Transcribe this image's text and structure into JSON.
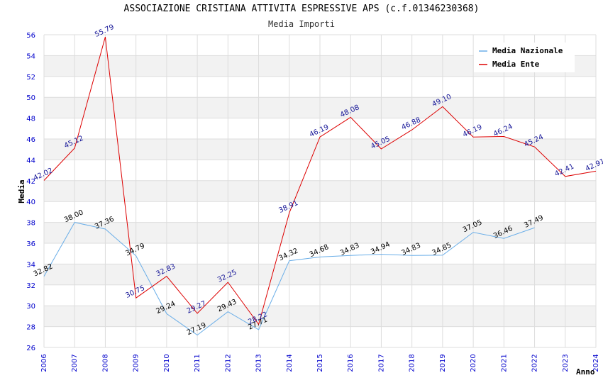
{
  "chart_data": {
    "type": "line",
    "title": "ASSOCIAZIONE CRISTIANA ATTIVITA ESPRESSIVE APS (c.f.01346230368)",
    "subtitle": "Media Importi",
    "xlabel": "Anno",
    "ylabel": "Media",
    "ylim": [
      26,
      56
    ],
    "ytick_step": 2,
    "grid": true,
    "legend_position": "top-right",
    "categories": [
      "2006",
      "2007",
      "2008",
      "2009",
      "2010",
      "2011",
      "2012",
      "2013",
      "2014",
      "2015",
      "2016",
      "2017",
      "2018",
      "2019",
      "2020",
      "2021",
      "2022",
      "2023",
      "2024"
    ],
    "series": [
      {
        "name": "Media Nazionale",
        "color": "#6aaee8",
        "values": [
          32.82,
          38.0,
          37.36,
          34.79,
          29.24,
          27.19,
          29.43,
          27.71,
          34.32,
          34.68,
          34.83,
          34.94,
          34.83,
          34.85,
          37.05,
          36.46,
          37.49,
          null,
          null
        ],
        "labels": [
          "32.82",
          "38.00",
          "37.36",
          "34.79",
          "29.24",
          "27.19",
          "29.43",
          "27.71",
          "34.32",
          "34.68",
          "34.83",
          "34.94",
          "34.83",
          "34.85",
          "37.05",
          "36.46",
          "37.49",
          null,
          null
        ]
      },
      {
        "name": "Media Ente",
        "color": "#dd0000",
        "values": [
          42.02,
          45.12,
          55.79,
          30.75,
          32.83,
          29.27,
          32.25,
          28.22,
          38.91,
          46.19,
          48.08,
          45.05,
          46.88,
          49.1,
          46.19,
          46.24,
          45.24,
          42.41,
          42.91
        ],
        "labels": [
          "42.02",
          "45.12",
          "55.79",
          "30.75",
          "32.83",
          "29.27",
          "32.25",
          "28.22",
          "38.91",
          "46.19",
          "48.08",
          "45.05",
          "46.88",
          "49.10",
          "46.19",
          "46.24",
          "45.24",
          "42.41",
          "42.91"
        ]
      }
    ]
  }
}
